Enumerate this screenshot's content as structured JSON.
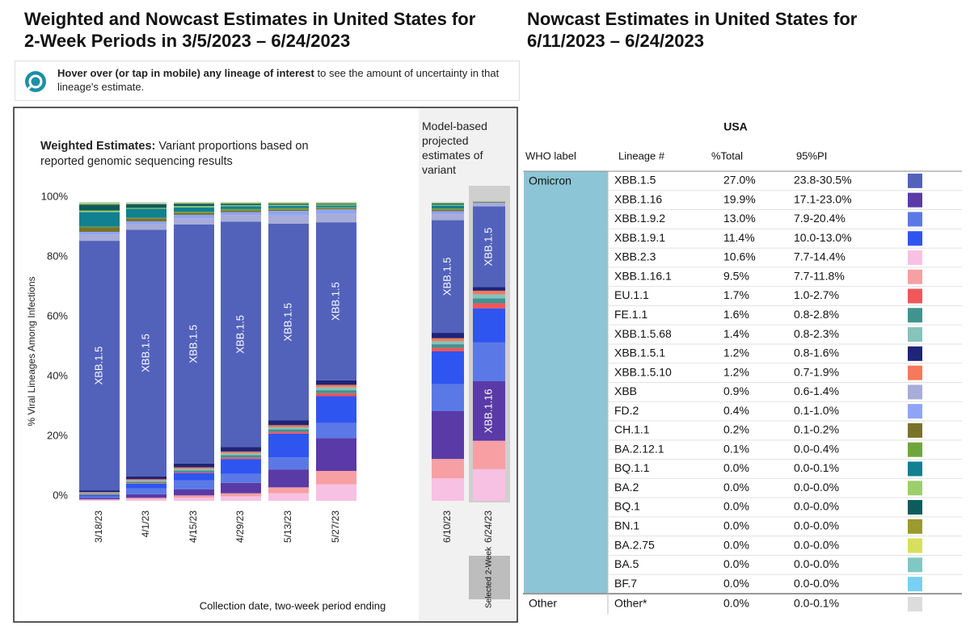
{
  "chart_data": {
    "type": "bar",
    "stacked": true,
    "title": "Weighted and Nowcast Estimates in United States for 2-Week Periods in 3/5/2023 – 6/24/2023",
    "subtitle_bold": "Weighted Estimates:",
    "subtitle": "Variant proportions based on reported genomic sequencing results",
    "projected_note": "Model-based projected estimates of variant",
    "selected_label": "Selected 2-Week",
    "ylabel": "% Viral Lineages Among Infections",
    "xlabel": "Collection date, two-week period ending",
    "categories": [
      "3/18/23",
      "4/1/23",
      "4/15/23",
      "4/29/23",
      "5/13/23",
      "5/27/23",
      "6/10/23",
      "6/24/23"
    ],
    "ylim": [
      0,
      100
    ],
    "yticks": [
      {
        "value": 0,
        "label": "0%"
      },
      {
        "value": 20,
        "label": "20%"
      },
      {
        "value": 40,
        "label": "40%"
      },
      {
        "value": 60,
        "label": "60%"
      },
      {
        "value": 80,
        "label": "80%"
      },
      {
        "value": 100,
        "label": "100%"
      }
    ],
    "grid": false,
    "series": [
      {
        "name": "XBB.1.5",
        "color": "#5262bb",
        "values": [
          83.5,
          82.5,
          80.0,
          75.4,
          65.8,
          52.9,
          37.7,
          27.0
        ],
        "value_labels": [
          null,
          null,
          null,
          null,
          null,
          null,
          null,
          "27.0%"
        ],
        "interval": "23.8-30.5%"
      },
      {
        "name": "XBB.1.16",
        "color": "#5a3aa6",
        "values": [
          0.5,
          1.2,
          2.0,
          3.5,
          6.0,
          11.0,
          16.0,
          19.9
        ],
        "value_labels": [
          null,
          null,
          null,
          null,
          null,
          null,
          null,
          "19.9%"
        ],
        "interval": "17.1-23.0%"
      },
      {
        "name": "XBB.1.9.2",
        "color": "#5b79e6",
        "values": [
          0.5,
          2.0,
          3.0,
          3.0,
          4.0,
          5.0,
          9.0,
          13.0
        ],
        "value_labels": [
          null,
          null,
          null,
          null,
          null,
          null,
          null,
          "13.0%"
        ],
        "interval": "7.9-20.4%"
      },
      {
        "name": "XBB.1.9.1",
        "color": "#2f55f0",
        "values": [
          0.4,
          1.5,
          2.5,
          5.0,
          8.0,
          9.0,
          11.0,
          11.4
        ],
        "value_labels": [
          null,
          null,
          null,
          null,
          null,
          null,
          null,
          "11.4%"
        ],
        "interval": "10.0-13.0%"
      },
      {
        "name": "XBB.2.3",
        "color": "#f7c1e3",
        "values": [
          0.3,
          0.6,
          1.0,
          1.5,
          2.5,
          5.5,
          7.5,
          10.6
        ],
        "value_labels": [
          null,
          null,
          null,
          null,
          null,
          null,
          null,
          "10.6%"
        ],
        "interval": "7.7-14.4%"
      },
      {
        "name": "XBB.1.16.1",
        "color": "#f6a0a4",
        "values": [
          0.2,
          0.4,
          0.8,
          1.0,
          2.0,
          4.5,
          6.5,
          9.5
        ],
        "value_labels": [
          null,
          null,
          null,
          null,
          null,
          null,
          null,
          "9.5%"
        ],
        "interval": "7.7-11.8%"
      },
      {
        "name": "EU.1.1",
        "color": "#f0565a",
        "values": [
          0.1,
          0.2,
          0.3,
          0.5,
          0.6,
          1.0,
          1.2,
          1.7
        ],
        "value_labels": [
          null,
          null,
          null,
          null,
          null,
          null,
          null,
          "1.7%"
        ],
        "interval": "1.0-2.7%"
      },
      {
        "name": "FE.1.1",
        "color": "#3f9490",
        "values": [
          0.3,
          0.5,
          0.6,
          0.8,
          0.8,
          1.0,
          1.2,
          1.6
        ],
        "value_labels": [
          null,
          null,
          null,
          null,
          null,
          null,
          null,
          "1.6%"
        ],
        "interval": "0.8-2.8%"
      },
      {
        "name": "XBB.1.5.68",
        "color": "#84c4bc",
        "values": [
          0.3,
          0.4,
          0.5,
          0.6,
          0.7,
          1.0,
          1.0,
          1.4
        ],
        "value_labels": [
          null,
          null,
          null,
          null,
          null,
          null,
          null,
          "1.4%"
        ],
        "interval": "0.8-2.3%"
      },
      {
        "name": "XBB.1.5.1",
        "color": "#1e2477",
        "values": [
          0.6,
          1.0,
          1.3,
          1.5,
          1.6,
          1.5,
          1.8,
          1.2
        ],
        "value_labels": [
          null,
          null,
          null,
          null,
          null,
          null,
          null,
          "1.2%"
        ],
        "interval": "0.8-1.6%"
      },
      {
        "name": "XBB.1.5.10",
        "color": "#f7785a",
        "values": [
          0.3,
          0.4,
          0.5,
          0.6,
          0.7,
          0.8,
          1.0,
          1.2
        ],
        "value_labels": [
          null,
          null,
          null,
          null,
          null,
          null,
          null,
          "1.2%"
        ],
        "interval": "0.7-1.9%"
      },
      {
        "name": "XBB",
        "color": "#a8acd8",
        "values": [
          2.0,
          1.8,
          2.0,
          2.2,
          2.8,
          2.8,
          2.0,
          0.9
        ],
        "value_labels": [
          null,
          null,
          null,
          null,
          null,
          null,
          null,
          "0.9%"
        ],
        "interval": "0.6-1.4%"
      },
      {
        "name": "FD.2",
        "color": "#8fa4f4",
        "values": [
          1.0,
          1.0,
          1.2,
          1.0,
          1.5,
          1.5,
          1.0,
          0.4
        ],
        "value_labels": [
          null,
          null,
          null,
          null,
          null,
          null,
          null,
          "0.4%"
        ],
        "interval": "0.1-1.0%"
      },
      {
        "name": "CH.1.1",
        "color": "#7a7228",
        "values": [
          1.5,
          1.0,
          0.7,
          0.6,
          0.5,
          0.4,
          0.6,
          0.2
        ],
        "value_labels": [
          null,
          null,
          null,
          null,
          null,
          null,
          null,
          "0.2%"
        ],
        "interval": "0.1-0.2%"
      },
      {
        "name": "BA.2.12.1",
        "color": "#6fa63c",
        "values": [
          0.2,
          0.2,
          0.3,
          0.4,
          0.4,
          0.3,
          0.3,
          0.1
        ],
        "value_labels": [
          null,
          null,
          null,
          null,
          null,
          null,
          null,
          "0.1%"
        ],
        "interval": "0.0-0.4%"
      },
      {
        "name": "BQ.1.1",
        "color": "#118090",
        "values": [
          4.9,
          3.0,
          1.5,
          1.0,
          0.8,
          0.6,
          1.0,
          0.0
        ],
        "value_labels": [
          null,
          null,
          null,
          null,
          null,
          null,
          null,
          "0.0%"
        ],
        "interval": "0.0-0.1%"
      },
      {
        "name": "BA.2",
        "color": "#9ccf6a",
        "values": [
          0.5,
          0.3,
          0.4,
          0.3,
          0.3,
          0.3,
          0.3,
          0.0
        ],
        "value_labels": [
          null,
          null,
          null,
          null,
          null,
          null,
          null,
          "0.0%"
        ],
        "interval": "0.0-0.0%"
      },
      {
        "name": "BQ.1",
        "color": "#0d5c5c",
        "values": [
          2.0,
          1.2,
          0.8,
          0.5,
          0.4,
          0.3,
          0.4,
          0.0
        ],
        "value_labels": [
          null,
          null,
          null,
          null,
          null,
          null,
          null,
          "0.0%"
        ],
        "interval": "0.0-0.0%"
      },
      {
        "name": "BN.1",
        "color": "#9a9a2e",
        "values": [
          0.3,
          0.2,
          0.2,
          0.2,
          0.2,
          0.2,
          0.1,
          0.0
        ],
        "value_labels": [
          null,
          null,
          null,
          null,
          null,
          null,
          null,
          "0.0%"
        ],
        "interval": "0.0-0.0%"
      },
      {
        "name": "BA.2.75",
        "color": "#d6e05c",
        "values": [
          0.2,
          0.1,
          0.1,
          0.1,
          0.1,
          0.1,
          0.1,
          0.0
        ],
        "value_labels": [
          null,
          null,
          null,
          null,
          null,
          null,
          null,
          "0.0%"
        ],
        "interval": "0.0-0.0%"
      },
      {
        "name": "BA.5",
        "color": "#7ec9c4",
        "values": [
          0.1,
          0.1,
          0.1,
          0.1,
          0.1,
          0.1,
          0.1,
          0.0
        ],
        "value_labels": [
          null,
          null,
          null,
          null,
          null,
          null,
          null,
          "0.0%"
        ],
        "interval": "0.0-0.0%"
      },
      {
        "name": "BF.7",
        "color": "#78d0f4",
        "values": [
          0.2,
          0.1,
          0.1,
          0.1,
          0.1,
          0.1,
          0.1,
          0.0
        ],
        "value_labels": [
          null,
          null,
          null,
          null,
          null,
          null,
          null,
          "0.0%"
        ],
        "interval": "0.0-0.0%"
      },
      {
        "name": "Other*",
        "color": "#dcdcdc",
        "values": [
          0.1,
          0.3,
          0.1,
          0.1,
          0.1,
          0.1,
          0.1,
          0.0
        ],
        "value_labels": [
          null,
          null,
          null,
          null,
          null,
          null,
          null,
          "0.0%"
        ],
        "interval": "0.0-0.1%"
      }
    ]
  },
  "info": {
    "bold": "Hover over (or tap in mobile) any lineage of interest",
    "text": "to see the amount of uncertainty in that lineage's estimate."
  },
  "table": {
    "title": "Nowcast Estimates in United States for 6/11/2023 – 6/24/2023",
    "region": "USA",
    "headers": [
      "WHO label",
      "Lineage #",
      "%Total",
      "95%PI"
    ],
    "groups": [
      "Omicron",
      "Other"
    ]
  }
}
